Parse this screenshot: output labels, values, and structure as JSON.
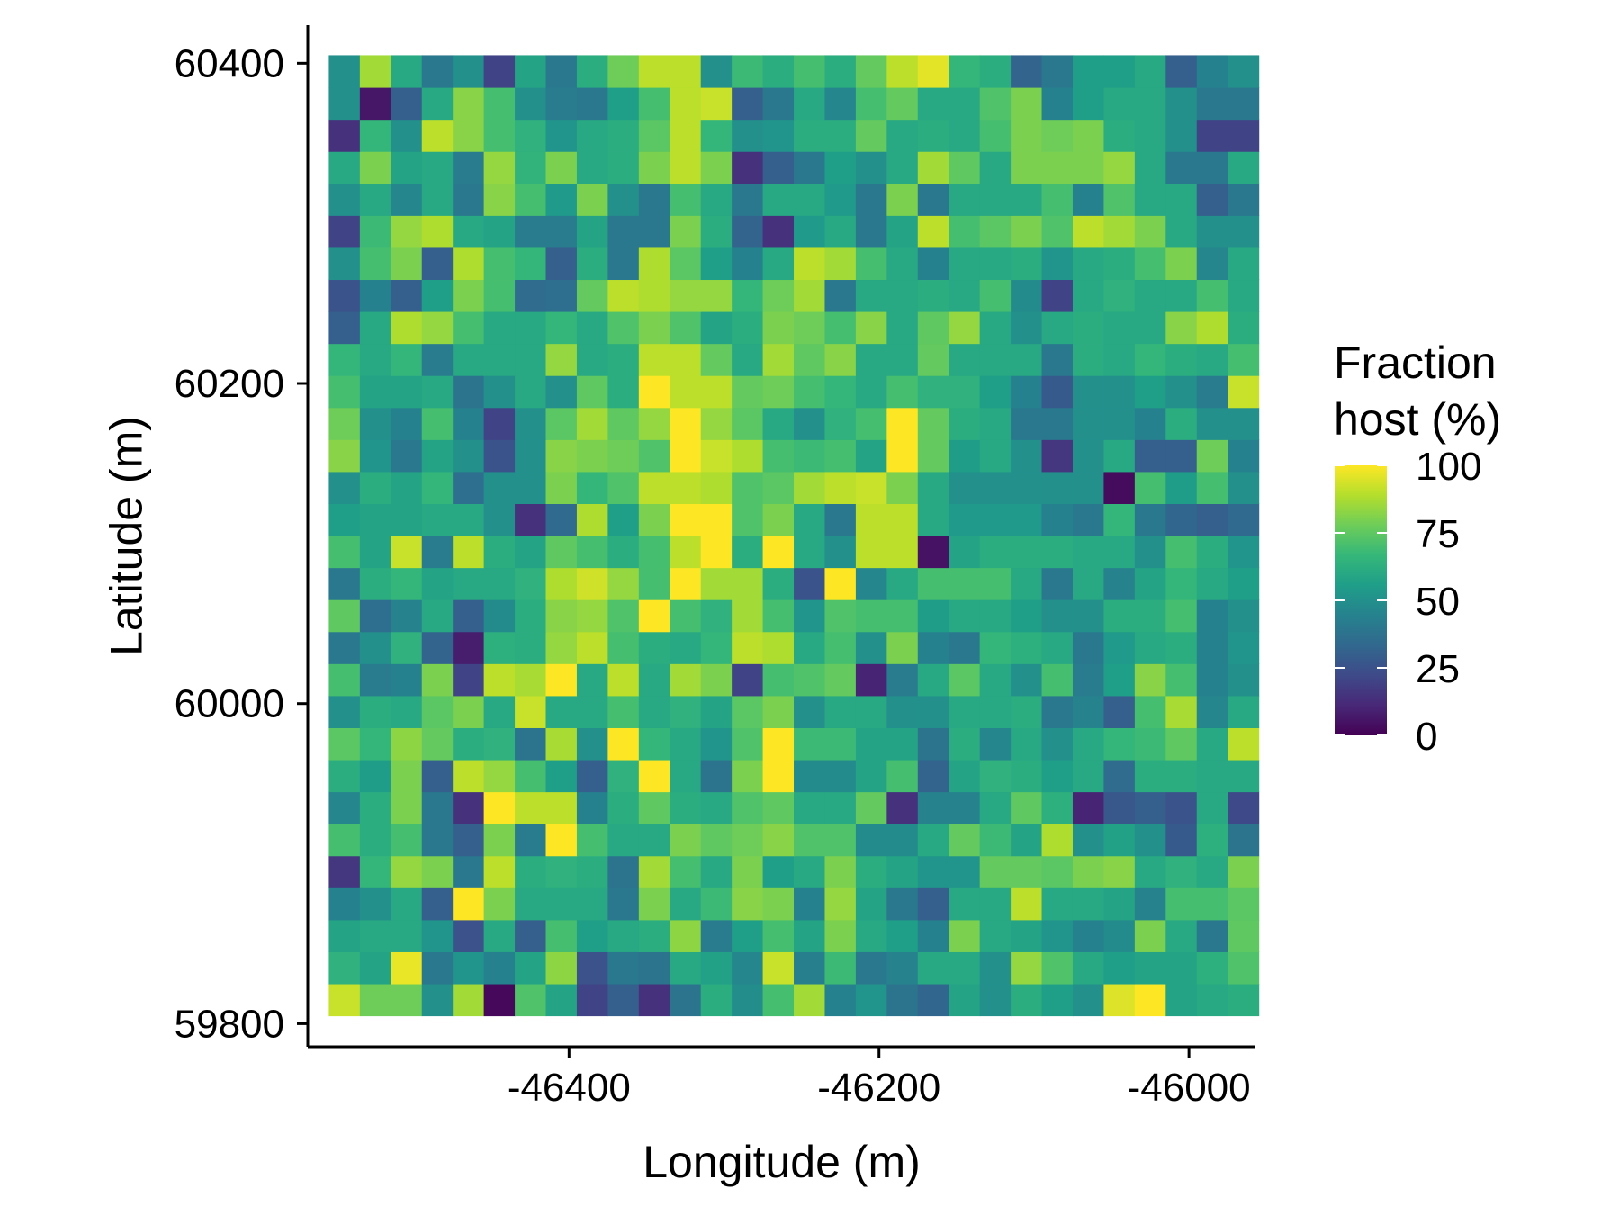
{
  "chart_data": {
    "type": "heatmap",
    "xlabel": "Longitude (m)",
    "ylabel": "Latitude (m)",
    "xlim": [
      -46568.6,
      -45957.1
    ],
    "ylim": [
      59785.6,
      60423.8
    ],
    "xticks": [
      -46400,
      -46200,
      -46000
    ],
    "yticks": [
      59800,
      60000,
      60200,
      60400
    ],
    "x_start": -46545,
    "y_start": 59815,
    "cell_size": 20,
    "legend": {
      "title_lines": [
        "Fraction",
        "host (%)"
      ],
      "ticks": [
        0,
        25,
        50,
        75,
        100
      ],
      "range": [
        0,
        100
      ],
      "placement": "right",
      "colormap": [
        "#440154",
        "#482878",
        "#3E4A89",
        "#31688E",
        "#26828E",
        "#1F9E89",
        "#35B779",
        "#6DCD59",
        "#B4DE2C",
        "#FDE725"
      ]
    },
    "values": [
      [
        92,
        78,
        78,
        50,
        86,
        2,
        72,
        58,
        20,
        30,
        14,
        38,
        62,
        49,
        70,
        86,
        44,
        52,
        38,
        33,
        58,
        50,
        62,
        56,
        50,
        95,
        100,
        58,
        60,
        62
      ],
      [
        64,
        58,
        97,
        40,
        52,
        44,
        58,
        83,
        25,
        40,
        38,
        60,
        57,
        46,
        92,
        43,
        68,
        40,
        45,
        60,
        60,
        50,
        84,
        72,
        60,
        56,
        58,
        58,
        63,
        72
      ],
      [
        58,
        60,
        60,
        52,
        25,
        60,
        30,
        70,
        56,
        60,
        62,
        83,
        42,
        56,
        70,
        58,
        80,
        60,
        56,
        44,
        80,
        60,
        58,
        52,
        44,
        48,
        80,
        60,
        40,
        75
      ],
      [
        44,
        50,
        60,
        30,
        100,
        80,
        60,
        60,
        60,
        40,
        80,
        60,
        68,
        82,
        80,
        44,
        84,
        58,
        40,
        30,
        60,
        60,
        90,
        60,
        60,
        58,
        45,
        70,
        70,
        74
      ],
      [
        16,
        66,
        84,
        80,
        40,
        90,
        62,
        64,
        62,
        38,
        86,
        70,
        60,
        80,
        56,
        60,
        80,
        62,
        58,
        52,
        52,
        76,
        76,
        74,
        80,
        82,
        60,
        64,
        60,
        80
      ],
      [
        70,
        62,
        70,
        40,
        30,
        80,
        42,
        100,
        70,
        60,
        60,
        80,
        75,
        78,
        82,
        72,
        72,
        48,
        48,
        60,
        76,
        68,
        58,
        88,
        50,
        57,
        50,
        28,
        63,
        38
      ],
      [
        46,
        62,
        80,
        40,
        14,
        100,
        90,
        90,
        44,
        62,
        75,
        62,
        60,
        72,
        75,
        60,
        60,
        76,
        14,
        45,
        45,
        60,
        75,
        63,
        10,
        27,
        30,
        26,
        60,
        22
      ],
      [
        62,
        55,
        80,
        30,
        90,
        84,
        70,
        56,
        30,
        64,
        100,
        60,
        38,
        80,
        100,
        48,
        48,
        58,
        70,
        32,
        58,
        64,
        62,
        56,
        60,
        35,
        62,
        62,
        60,
        60
      ],
      [
        74,
        66,
        83,
        76,
        62,
        64,
        38,
        87,
        50,
        100,
        66,
        60,
        52,
        72,
        100,
        68,
        68,
        58,
        58,
        38,
        62,
        46,
        60,
        50,
        60,
        66,
        68,
        75,
        60,
        90
      ],
      [
        50,
        62,
        60,
        74,
        80,
        60,
        92,
        60,
        60,
        70,
        60,
        64,
        58,
        74,
        80,
        50,
        60,
        60,
        50,
        50,
        60,
        60,
        62,
        40,
        45,
        30,
        70,
        87,
        46,
        60
      ],
      [
        70,
        42,
        44,
        80,
        20,
        90,
        87,
        100,
        60,
        90,
        60,
        86,
        80,
        20,
        70,
        72,
        76,
        10,
        42,
        60,
        74,
        60,
        50,
        70,
        42,
        56,
        82,
        70,
        44,
        50
      ],
      [
        40,
        50,
        64,
        32,
        8,
        63,
        62,
        84,
        90,
        70,
        62,
        60,
        66,
        90,
        88,
        60,
        70,
        50,
        80,
        44,
        40,
        66,
        63,
        60,
        40,
        54,
        60,
        62,
        44,
        52
      ],
      [
        75,
        36,
        45,
        60,
        30,
        48,
        62,
        82,
        84,
        72,
        100,
        70,
        64,
        86,
        70,
        52,
        72,
        70,
        70,
        55,
        60,
        60,
        56,
        50,
        50,
        62,
        62,
        70,
        44,
        50
      ],
      [
        40,
        62,
        66,
        58,
        60,
        60,
        64,
        88,
        93,
        84,
        70,
        100,
        86,
        86,
        62,
        26,
        100,
        46,
        60,
        70,
        70,
        70,
        60,
        40,
        60,
        45,
        58,
        66,
        60,
        56
      ],
      [
        70,
        58,
        92,
        42,
        90,
        62,
        58,
        75,
        70,
        62,
        70,
        90,
        100,
        62,
        100,
        60,
        50,
        90,
        90,
        5,
        58,
        62,
        62,
        62,
        60,
        60,
        50,
        70,
        62,
        52
      ],
      [
        56,
        58,
        58,
        60,
        60,
        50,
        14,
        34,
        88,
        56,
        80,
        100,
        100,
        72,
        80,
        60,
        40,
        90,
        90,
        60,
        54,
        54,
        54,
        44,
        40,
        66,
        40,
        33,
        30,
        34
      ],
      [
        50,
        62,
        58,
        66,
        36,
        50,
        50,
        80,
        66,
        72,
        90,
        90,
        88,
        72,
        74,
        86,
        90,
        92,
        80,
        60,
        50,
        50,
        50,
        50,
        50,
        3,
        70,
        55,
        70,
        50
      ],
      [
        82,
        52,
        40,
        58,
        50,
        26,
        50,
        82,
        80,
        78,
        72,
        100,
        92,
        88,
        70,
        68,
        70,
        58,
        100,
        76,
        55,
        60,
        50,
        16,
        50,
        60,
        30,
        30,
        78,
        44
      ],
      [
        78,
        50,
        44,
        70,
        44,
        20,
        50,
        74,
        86,
        75,
        84,
        100,
        84,
        74,
        60,
        50,
        64,
        70,
        100,
        76,
        62,
        60,
        40,
        40,
        50,
        50,
        44,
        62,
        50,
        50
      ],
      [
        70,
        58,
        58,
        60,
        38,
        50,
        60,
        50,
        75,
        62,
        100,
        90,
        90,
        76,
        78,
        70,
        66,
        60,
        70,
        64,
        64,
        56,
        44,
        28,
        50,
        50,
        56,
        50,
        42,
        92
      ],
      [
        66,
        60,
        66,
        42,
        60,
        60,
        60,
        84,
        60,
        62,
        90,
        90,
        76,
        60,
        86,
        75,
        82,
        60,
        60,
        76,
        60,
        60,
        60,
        40,
        62,
        60,
        66,
        62,
        60,
        70
      ],
      [
        30,
        60,
        88,
        84,
        70,
        60,
        60,
        66,
        60,
        72,
        80,
        72,
        58,
        62,
        80,
        78,
        70,
        82,
        60,
        75,
        84,
        60,
        50,
        60,
        62,
        60,
        60,
        82,
        88,
        62
      ],
      [
        26,
        44,
        30,
        56,
        80,
        70,
        35,
        36,
        76,
        90,
        88,
        84,
        84,
        66,
        78,
        86,
        40,
        60,
        60,
        62,
        60,
        70,
        48,
        20,
        60,
        64,
        60,
        60,
        70,
        60
      ],
      [
        50,
        70,
        80,
        30,
        88,
        70,
        66,
        30,
        62,
        40,
        88,
        74,
        56,
        44,
        60,
        90,
        86,
        70,
        60,
        44,
        60,
        60,
        62,
        52,
        60,
        62,
        70,
        80,
        46,
        60
      ],
      [
        20,
        68,
        84,
        88,
        60,
        58,
        42,
        42,
        58,
        40,
        40,
        80,
        62,
        32,
        14,
        54,
        60,
        40,
        58,
        90,
        70,
        74,
        80,
        72,
        90,
        86,
        80,
        60,
        50,
        50
      ],
      [
        50,
        60,
        46,
        60,
        40,
        82,
        70,
        54,
        80,
        50,
        40,
        70,
        60,
        40,
        60,
        60,
        54,
        40,
        80,
        40,
        60,
        60,
        60,
        70,
        44,
        72,
        60,
        60,
        30,
        40
      ],
      [
        60,
        80,
        58,
        60,
        42,
        84,
        65,
        80,
        60,
        62,
        80,
        90,
        80,
        14,
        30,
        40,
        56,
        50,
        60,
        86,
        75,
        60,
        80,
        80,
        80,
        84,
        60,
        40,
        40,
        60
      ],
      [
        14,
        66,
        50,
        90,
        82,
        70,
        64,
        52,
        60,
        62,
        74,
        90,
        66,
        50,
        52,
        62,
        62,
        76,
        60,
        62,
        60,
        70,
        80,
        78,
        80,
        62,
        60,
        50,
        20,
        20
      ],
      [
        50,
        6,
        30,
        60,
        82,
        70,
        50,
        42,
        40,
        56,
        70,
        90,
        92,
        30,
        40,
        60,
        46,
        70,
        76,
        60,
        60,
        72,
        80,
        44,
        56,
        60,
        60,
        50,
        40,
        40
      ],
      [
        50,
        86,
        60,
        40,
        50,
        20,
        58,
        40,
        62,
        78,
        90,
        90,
        50,
        68,
        62,
        70,
        62,
        76,
        90,
        96,
        66,
        62,
        32,
        40,
        56,
        56,
        60,
        30,
        44,
        50
      ]
    ]
  }
}
